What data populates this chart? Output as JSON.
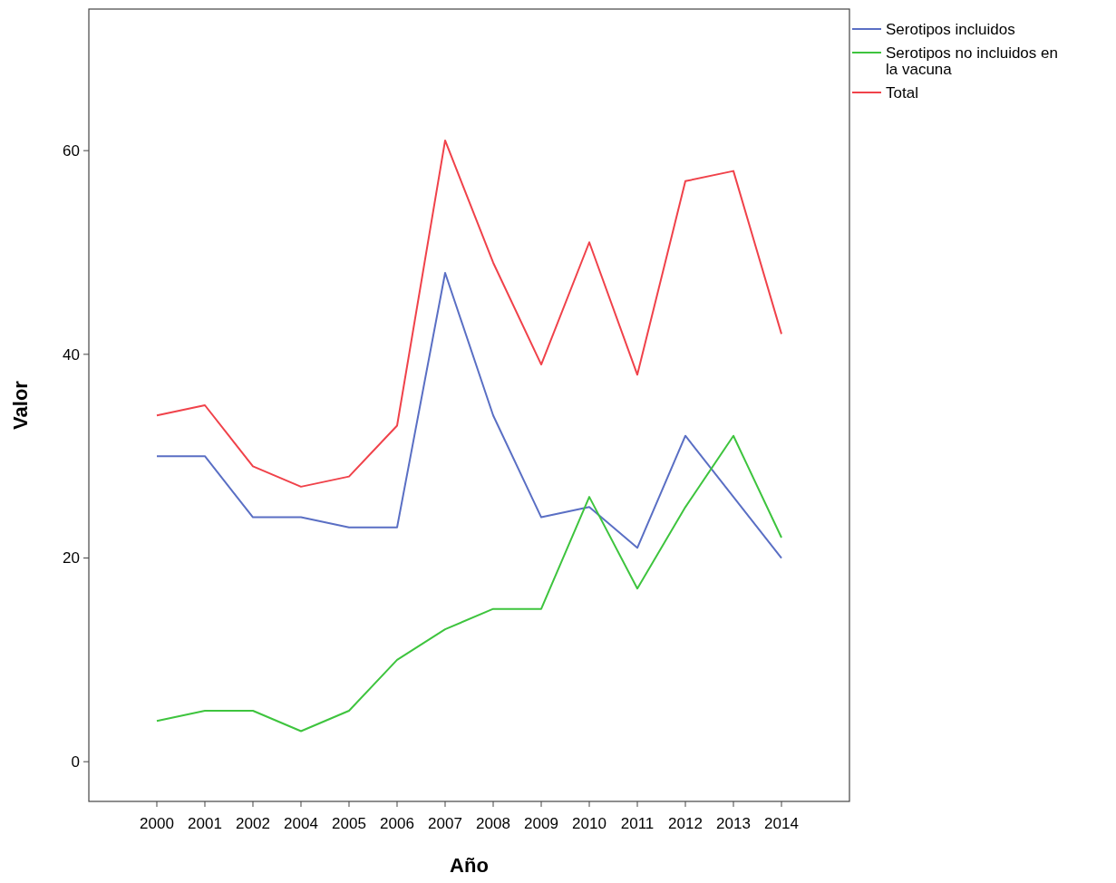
{
  "chart_data": {
    "type": "line",
    "xlabel": "Año",
    "ylabel": "Valor",
    "categories": [
      "2000",
      "2001",
      "2002",
      "2004",
      "2005",
      "2006",
      "2007",
      "2008",
      "2009",
      "2010",
      "2011",
      "2012",
      "2013",
      "2014"
    ],
    "series": [
      {
        "name": "Serotipos incluidos",
        "color": "#5a6fc4",
        "values": [
          30,
          30,
          24,
          24,
          23,
          23,
          48,
          34,
          24,
          25,
          21,
          32,
          26,
          20
        ]
      },
      {
        "name": "Serotipos no incluidos en la vacuna",
        "color": "#3ec43e",
        "values": [
          4,
          5,
          5,
          3,
          5,
          10,
          13,
          15,
          15,
          26,
          17,
          25,
          32,
          22
        ]
      },
      {
        "name": "Total",
        "color": "#f0424a",
        "values": [
          34,
          35,
          29,
          27,
          28,
          33,
          61,
          49,
          39,
          51,
          38,
          57,
          58,
          42
        ]
      }
    ],
    "ylim": [
      -3.9,
      73.9
    ],
    "yticks": [
      0,
      20,
      40,
      60
    ],
    "grid": false,
    "legend": "top right",
    "marker": "none",
    "line_style": "solid"
  }
}
